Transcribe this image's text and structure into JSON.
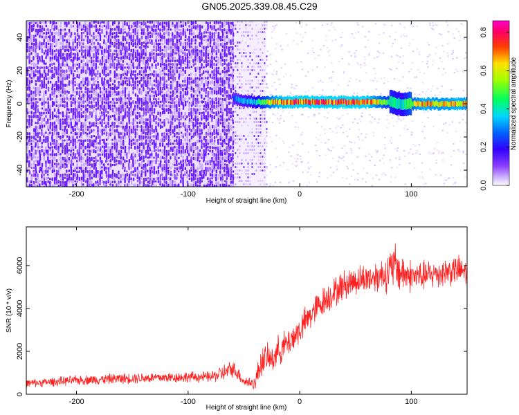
{
  "title": "GN05.2025.339.08.45.C29",
  "chart_data": [
    {
      "type": "heatmap",
      "xlabel": "Height of straight line (km)",
      "ylabel": "Frequency (Hz)",
      "xlim": [
        -245,
        150
      ],
      "ylim": [
        -50,
        50
      ],
      "xticks": [
        -200,
        -100,
        0,
        100
      ],
      "yticks": [
        -40,
        -20,
        0,
        20,
        40
      ],
      "colorbar": {
        "label": "Normalized spectral amplitude",
        "range": [
          0.0,
          0.86
        ],
        "ticks": [
          "0.0",
          "0.2",
          "0.4",
          "0.6",
          "0.8"
        ],
        "colormap": "rainbow",
        "colors": [
          "#ffffff",
          "#e6d4ff",
          "#9c5cff",
          "#6a00ff",
          "#0040ff",
          "#00c8ff",
          "#00ff40",
          "#c0ff00",
          "#ffd000",
          "#ff4000",
          "#ff0080",
          "#ff00c0"
        ]
      },
      "noise_region_x": [
        -245,
        -60
      ],
      "partial_noise_region_x": [
        -60,
        -30
      ],
      "signal_line": {
        "x": [
          -60,
          -50,
          -40,
          -30,
          -20,
          -10,
          0,
          20,
          40,
          60,
          80,
          90,
          100,
          110,
          120,
          130,
          140,
          150
        ],
        "frequency": [
          3,
          2,
          1,
          1,
          1,
          1,
          1,
          1,
          1,
          1,
          1,
          0,
          0,
          0,
          0,
          0,
          0,
          0
        ],
        "amplitude": [
          0.3,
          0.35,
          0.4,
          0.6,
          0.75,
          0.8,
          0.8,
          0.8,
          0.8,
          0.8,
          0.5,
          0.4,
          0.6,
          0.75,
          0.7,
          0.7,
          0.75,
          0.7
        ]
      }
    },
    {
      "type": "line",
      "xlabel": "Height of straight line (km)",
      "ylabel": "SNR (10 * v/v)",
      "xlim": [
        -245,
        150
      ],
      "ylim": [
        0,
        7800
      ],
      "xticks": [
        -200,
        -100,
        0,
        100
      ],
      "yticks": [
        0,
        2000,
        4000,
        6000
      ],
      "color": "#ff2020",
      "series": [
        {
          "x": [
            -245,
            -200,
            -150,
            -100,
            -80,
            -65,
            -60,
            -55,
            -50,
            -40,
            -35,
            -30,
            -25,
            -20,
            -10,
            0,
            10,
            20,
            30,
            40,
            50,
            60,
            70,
            80,
            85,
            90,
            100,
            110,
            120,
            130,
            140,
            150
          ],
          "y": [
            500,
            650,
            750,
            800,
            800,
            1050,
            1200,
            950,
            600,
            500,
            1500,
            1700,
            1600,
            2000,
            2400,
            3000,
            3700,
            4300,
            4700,
            5100,
            5300,
            5400,
            5500,
            5700,
            6000,
            5700,
            5500,
            5500,
            5600,
            5700,
            5800,
            5700
          ],
          "spread": [
            300,
            350,
            400,
            400,
            400,
            700,
            600,
            500,
            400,
            500,
            1200,
            1000,
            1000,
            1100,
            1100,
            1100,
            1100,
            1100,
            1100,
            1100,
            1100,
            1100,
            1200,
            1500,
            1800,
            1500,
            1200,
            1100,
            1100,
            1100,
            1100,
            1000
          ]
        }
      ]
    }
  ]
}
